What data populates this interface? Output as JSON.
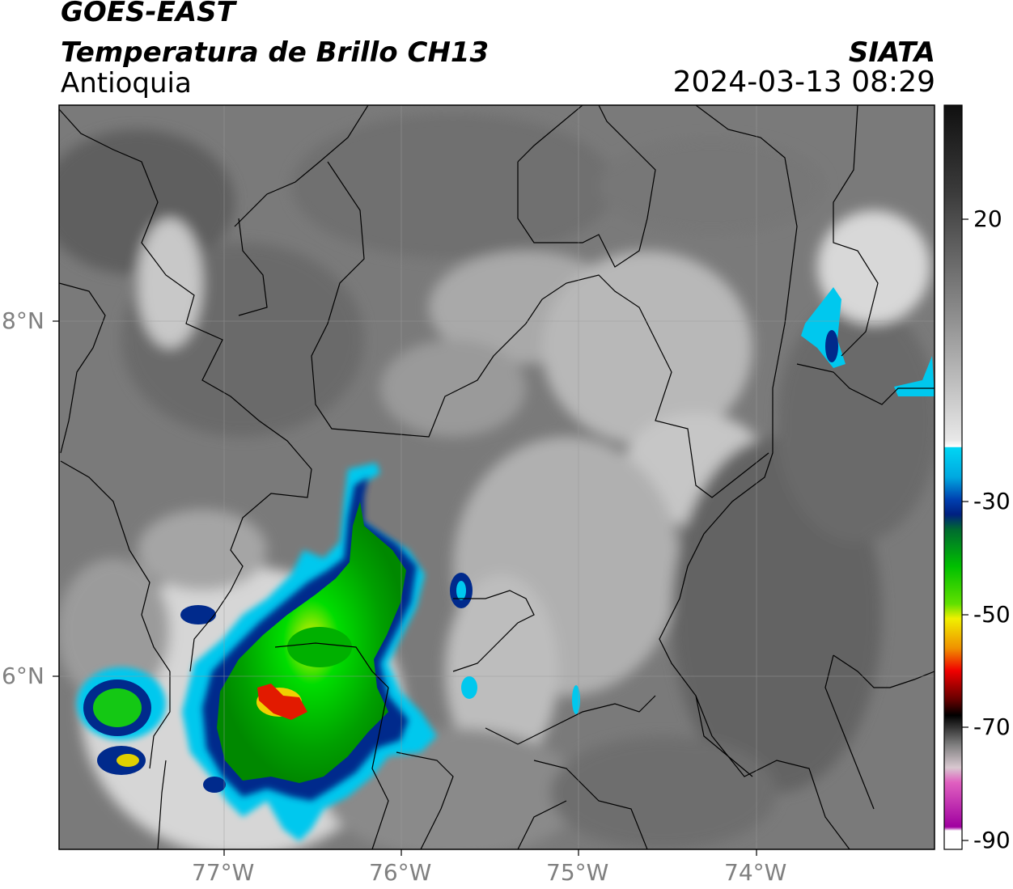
{
  "header": {
    "satellite": "GOES-EAST",
    "product": "Temperatura de Brillo CH13",
    "region": "Antioquia",
    "organization": "SIATA",
    "timestamp": "2024-03-13 08:29"
  },
  "map": {
    "lon_ticks": [
      "77°W",
      "76°W",
      "75°W",
      "74°W"
    ],
    "lat_ticks": [
      "8°N",
      "6°N"
    ],
    "grid": true
  },
  "colorbar": {
    "ticks": [
      "20",
      "-30",
      "-50",
      "-70",
      "-90"
    ],
    "colors": {
      "warm": "#3a3a3a",
      "neutral": "#f4f4f4",
      "cyan": "#00d2ee",
      "blue": "#003090",
      "green": "#00c000",
      "yellow": "#f0f000",
      "red": "#e00000",
      "black": "#101010",
      "magenta": "#a000a0"
    }
  }
}
